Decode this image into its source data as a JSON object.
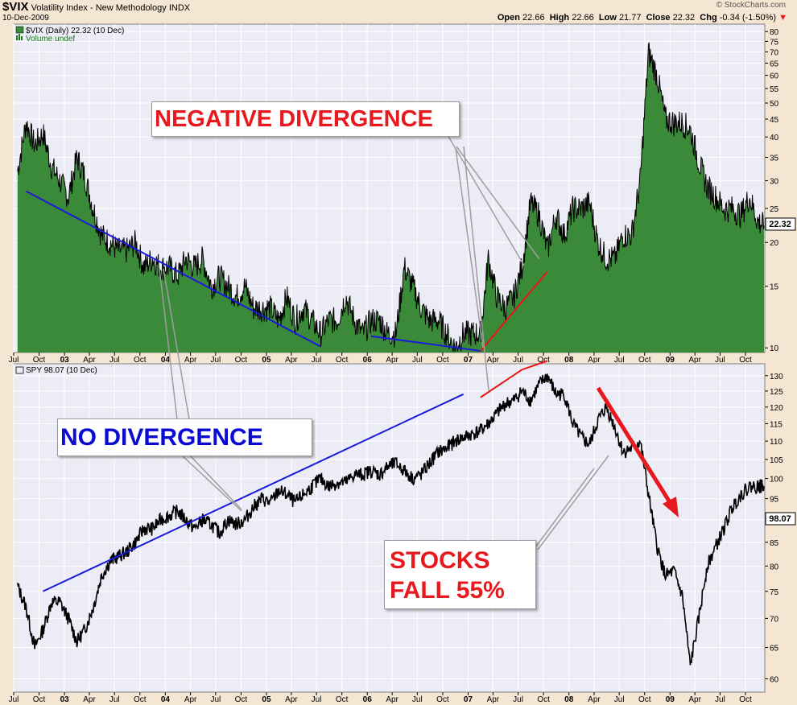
{
  "header": {
    "symbol": "$VIX",
    "name": "Volatility Index - New Methodology",
    "exchange": "INDX",
    "date": "10-Dec-2009",
    "brand": "© StockCharts.com",
    "open_label": "Open",
    "open": "22.66",
    "high_label": "High",
    "high": "22.66",
    "low_label": "Low",
    "low": "21.77",
    "close_label": "Close",
    "close": "22.32",
    "chg_label": "Chg",
    "chg": "-0.34 (-1.50%)"
  },
  "top_panel": {
    "legend_main": "$VIX (Daily) 22.32 (10 Dec)",
    "legend_volume": "Volume undef",
    "last_value": "22.32"
  },
  "bottom_panel": {
    "legend_main": "SPY 98.07 (10 Dec)",
    "last_value": "98.07"
  },
  "annotations": {
    "negative_divergence": "NEGATIVE DIVERGENCE",
    "no_divergence": "NO DIVERGENCE",
    "stocks_line1": "STOCKS",
    "stocks_line2": "FALL 55%"
  },
  "colors": {
    "vix_fill": "#3a8a3a",
    "annotation_red": "#e8191e",
    "annotation_blue": "#0a0ad2",
    "trend_blue": "#1a1adb",
    "trend_red": "#e81616",
    "plot_bg": "#ececf6",
    "grid": "#ffffff",
    "frame_bg": "#f5e6d3"
  },
  "chart_data": [
    {
      "type": "area",
      "title": "$VIX (Daily) 22.32 (10 Dec)",
      "y_scale": "log",
      "ylim": [
        9.7,
        84
      ],
      "y_ticks": [
        10,
        15,
        20,
        25,
        30,
        35,
        40,
        45,
        50,
        55,
        60,
        65,
        70,
        75,
        80
      ],
      "x_tick_labels": [
        "Jul",
        "Oct",
        "03",
        "Apr",
        "Jul",
        "Oct",
        "04",
        "Apr",
        "Jul",
        "Oct",
        "05",
        "Apr",
        "Jul",
        "Oct",
        "06",
        "Apr",
        "Jul",
        "Oct",
        "07",
        "Apr",
        "Jul",
        "Oct",
        "08",
        "Apr",
        "Jul",
        "Oct",
        "09",
        "Apr",
        "Jul",
        "Oct"
      ],
      "x": [
        "2002-07",
        "2002-08",
        "2002-09",
        "2002-10",
        "2002-11",
        "2002-12",
        "2003-01",
        "2003-02",
        "2003-03",
        "2003-04",
        "2003-05",
        "2003-06",
        "2003-07",
        "2003-08",
        "2003-09",
        "2003-10",
        "2003-11",
        "2003-12",
        "2004-01",
        "2004-02",
        "2004-03",
        "2004-04",
        "2004-05",
        "2004-06",
        "2004-07",
        "2004-08",
        "2004-09",
        "2004-10",
        "2004-11",
        "2004-12",
        "2005-01",
        "2005-02",
        "2005-03",
        "2005-04",
        "2005-05",
        "2005-06",
        "2005-07",
        "2005-08",
        "2005-09",
        "2005-10",
        "2005-11",
        "2005-12",
        "2006-01",
        "2006-02",
        "2006-03",
        "2006-04",
        "2006-05",
        "2006-06",
        "2006-07",
        "2006-08",
        "2006-09",
        "2006-10",
        "2006-11",
        "2006-12",
        "2007-01",
        "2007-02",
        "2007-03",
        "2007-04",
        "2007-05",
        "2007-06",
        "2007-07",
        "2007-08",
        "2007-09",
        "2007-10",
        "2007-11",
        "2007-12",
        "2008-01",
        "2008-02",
        "2008-03",
        "2008-04",
        "2008-05",
        "2008-06",
        "2008-07",
        "2008-08",
        "2008-09",
        "2008-10",
        "2008-11",
        "2008-12",
        "2009-01",
        "2009-02",
        "2009-03",
        "2009-04",
        "2009-05",
        "2009-06",
        "2009-07",
        "2009-08",
        "2009-09",
        "2009-10",
        "2009-11",
        "2009-12"
      ],
      "values": [
        32,
        44,
        38,
        41,
        33,
        30,
        27,
        35,
        31,
        25,
        21,
        20,
        19,
        19,
        20,
        17,
        18,
        17,
        17,
        16,
        18,
        17,
        18,
        15,
        16,
        15,
        14,
        15,
        13,
        13,
        13,
        12,
        14,
        12,
        13,
        12,
        11,
        12,
        12,
        14,
        12,
        11,
        12,
        12,
        11,
        11,
        17,
        15,
        13,
        12,
        12,
        11,
        10,
        11,
        11,
        11,
        18,
        14,
        13,
        14,
        17,
        26,
        24,
        19,
        24,
        21,
        25,
        25,
        26,
        20,
        18,
        18,
        21,
        21,
        30,
        70,
        60,
        45,
        44,
        44,
        42,
        34,
        29,
        27,
        25,
        25,
        24,
        27,
        23,
        22.32
      ],
      "trendlines": [
        {
          "color": "blue",
          "from": [
            "2002-08",
            28
          ],
          "to": [
            "2005-07",
            10.1
          ]
        },
        {
          "color": "blue",
          "from": [
            "2006-01",
            10.8
          ],
          "to": [
            "2007-02",
            9.8
          ]
        },
        {
          "color": "red",
          "from": [
            "2007-02",
            9.8
          ],
          "to": [
            "2007-10",
            16.5
          ]
        }
      ]
    },
    {
      "type": "line",
      "title": "SPY 98.07 (10 Dec)",
      "y_scale": "log",
      "ylim": [
        58,
        134
      ],
      "y_ticks": [
        60,
        65,
        70,
        75,
        80,
        85,
        90,
        95,
        100,
        105,
        110,
        115,
        120,
        125,
        130
      ],
      "x_tick_labels": [
        "Jul",
        "Oct",
        "03",
        "Apr",
        "Jul",
        "Oct",
        "04",
        "Apr",
        "Jul",
        "Oct",
        "05",
        "Apr",
        "Jul",
        "Oct",
        "06",
        "Apr",
        "Jul",
        "Oct",
        "07",
        "Apr",
        "Jul",
        "Oct",
        "08",
        "Apr",
        "Jul",
        "Oct",
        "09",
        "Apr",
        "Jul",
        "Oct"
      ],
      "x": [
        "2002-07",
        "2002-08",
        "2002-09",
        "2002-10",
        "2002-11",
        "2002-12",
        "2003-01",
        "2003-02",
        "2003-03",
        "2003-04",
        "2003-05",
        "2003-06",
        "2003-07",
        "2003-08",
        "2003-09",
        "2003-10",
        "2003-11",
        "2003-12",
        "2004-01",
        "2004-02",
        "2004-03",
        "2004-04",
        "2004-05",
        "2004-06",
        "2004-07",
        "2004-08",
        "2004-09",
        "2004-10",
        "2004-11",
        "2004-12",
        "2005-01",
        "2005-02",
        "2005-03",
        "2005-04",
        "2005-05",
        "2005-06",
        "2005-07",
        "2005-08",
        "2005-09",
        "2005-10",
        "2005-11",
        "2005-12",
        "2006-01",
        "2006-02",
        "2006-03",
        "2006-04",
        "2006-05",
        "2006-06",
        "2006-07",
        "2006-08",
        "2006-09",
        "2006-10",
        "2006-11",
        "2006-12",
        "2007-01",
        "2007-02",
        "2007-03",
        "2007-04",
        "2007-05",
        "2007-06",
        "2007-07",
        "2007-08",
        "2007-09",
        "2007-10",
        "2007-11",
        "2007-12",
        "2008-01",
        "2008-02",
        "2008-03",
        "2008-04",
        "2008-05",
        "2008-06",
        "2008-07",
        "2008-08",
        "2008-09",
        "2008-10",
        "2008-11",
        "2008-12",
        "2009-01",
        "2009-02",
        "2009-03",
        "2009-04",
        "2009-05",
        "2009-06",
        "2009-07",
        "2009-08",
        "2009-09",
        "2009-10",
        "2009-11",
        "2009-12"
      ],
      "values": [
        76,
        72,
        65,
        68,
        73,
        73,
        70,
        66,
        68,
        72,
        78,
        81,
        82,
        83,
        85,
        88,
        88,
        90,
        91,
        92,
        90,
        88,
        90,
        89,
        87,
        90,
        89,
        90,
        93,
        95,
        94,
        97,
        96,
        94,
        96,
        98,
        100,
        98,
        99,
        99,
        101,
        101,
        102,
        101,
        103,
        104,
        102,
        100,
        101,
        104,
        107,
        108,
        110,
        111,
        112,
        113,
        115,
        118,
        121,
        122,
        125,
        122,
        127,
        130,
        124,
        124,
        115,
        111,
        109,
        116,
        120,
        114,
        107,
        108,
        110,
        96,
        84,
        78,
        79,
        74,
        62,
        70,
        80,
        84,
        88,
        93,
        96,
        98,
        98,
        98.07
      ],
      "trendlines": [
        {
          "color": "blue",
          "from": [
            "2002-10",
            75
          ],
          "to": [
            "2006-12",
            124
          ]
        },
        {
          "color": "red",
          "from": [
            "2007-02",
            123
          ],
          "to": [
            "2007-07",
            132
          ]
        },
        {
          "color": "red",
          "from": [
            "2007-07",
            132
          ],
          "to": [
            "2007-10",
            135
          ]
        }
      ]
    }
  ]
}
